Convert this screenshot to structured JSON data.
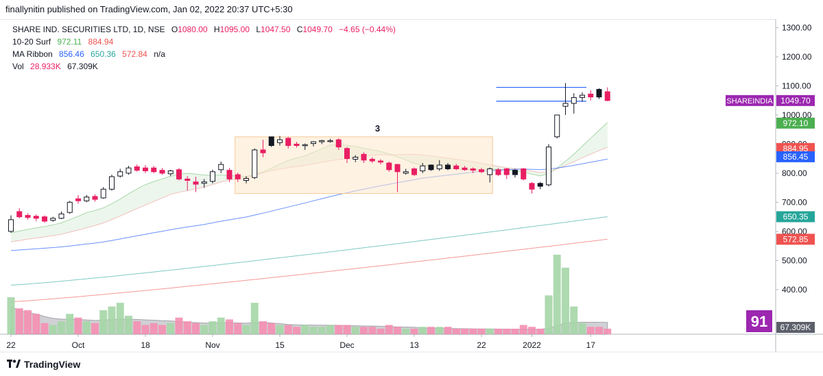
{
  "published_line": "finallynitin published on TradingView.com, Jan 02, 2022 20:37 UTC+5:30",
  "brand": {
    "logo_icon": "tradingview-logo-icon",
    "name": "TradingView"
  },
  "legend": {
    "symbol": "SHARE IND. SECURITIES LTD, 1D, NSE",
    "open_label": "O",
    "open": "1080.00",
    "high_label": "H",
    "high": "1095.00",
    "low_label": "L",
    "low": "1047.50",
    "close_label": "C",
    "close": "1049.70",
    "change": "−4.65 (−0.44%)",
    "surf_name": "10-20 Surf",
    "surf_v1": "972.11",
    "surf_v2": "884.94",
    "ribbon_name": "MA Ribbon",
    "ribbon_v1": "856.46",
    "ribbon_v2": "650.36",
    "ribbon_v3": "572.84",
    "ribbon_v4": "n/a",
    "vol_name": "Vol",
    "vol_v1": "28.933K",
    "vol_v2": "67.309K"
  },
  "colors": {
    "up": "#ffffff",
    "up_border": "#131722",
    "down": "#e91e63",
    "black_candle": "#131722",
    "surf_fast": "#4caf50",
    "surf_slow": "#ef5350",
    "ma_blue": "#2962ff",
    "ma_teal": "#26a69a",
    "ma_red": "#ef5350",
    "box_fill": "#fde7cc",
    "box_border": "#f5c997",
    "vol_up": "#a5d6a7",
    "vol_down": "#f48fb1",
    "vol_ma": "#9e9e9e",
    "hline": "#2962ff"
  },
  "chart_data": {
    "type": "candlestick",
    "symbol": "SHAREINDIA",
    "ylim": [
      350,
      1320
    ],
    "y_ticks": [
      "1300.00",
      "1200.00",
      "1100.00",
      "1000.00",
      "900.00",
      "800.00",
      "700.00",
      "600.00",
      "500.00",
      "400.00"
    ],
    "x_ticks": [
      "22",
      "Oct",
      "18",
      "Nov",
      "15",
      "Dec",
      "13",
      "22",
      "2022",
      "17"
    ],
    "x_tick_bars": [
      0,
      8,
      16,
      24,
      32,
      40,
      48,
      56,
      62,
      69
    ],
    "box_annotation": {
      "label": "3",
      "x_from_bar": 27,
      "x_to_bar": 57,
      "y_from": 730,
      "y_to": 925
    },
    "range_lines": [
      {
        "y": 1095,
        "x_from_bar": 58,
        "x_to_bar": 64
      },
      {
        "y": 1047.5,
        "x_from_bar": 58,
        "x_to_bar": 64
      }
    ],
    "candles": [
      {
        "o": 600,
        "h": 655,
        "l": 595,
        "c": 640,
        "vol": 40,
        "color": "up"
      },
      {
        "o": 668,
        "h": 680,
        "l": 645,
        "c": 650,
        "vol": 28,
        "color": "down"
      },
      {
        "o": 655,
        "h": 662,
        "l": 640,
        "c": 648,
        "vol": 26,
        "color": "down"
      },
      {
        "o": 652,
        "h": 658,
        "l": 635,
        "c": 645,
        "vol": 22,
        "color": "down"
      },
      {
        "o": 650,
        "h": 655,
        "l": 630,
        "c": 635,
        "vol": 12,
        "color": "down"
      },
      {
        "o": 638,
        "h": 650,
        "l": 633,
        "c": 645,
        "vol": 10,
        "color": "up"
      },
      {
        "o": 645,
        "h": 668,
        "l": 642,
        "c": 660,
        "vol": 14,
        "color": "up"
      },
      {
        "o": 665,
        "h": 705,
        "l": 660,
        "c": 700,
        "vol": 22,
        "color": "up"
      },
      {
        "o": 712,
        "h": 725,
        "l": 695,
        "c": 705,
        "vol": 18,
        "color": "down"
      },
      {
        "o": 705,
        "h": 725,
        "l": 700,
        "c": 718,
        "vol": 14,
        "color": "up"
      },
      {
        "o": 720,
        "h": 727,
        "l": 702,
        "c": 710,
        "vol": 12,
        "color": "down"
      },
      {
        "o": 715,
        "h": 752,
        "l": 712,
        "c": 745,
        "vol": 26,
        "color": "up"
      },
      {
        "o": 745,
        "h": 795,
        "l": 740,
        "c": 788,
        "vol": 30,
        "color": "up"
      },
      {
        "o": 790,
        "h": 815,
        "l": 785,
        "c": 805,
        "vol": 34,
        "color": "up"
      },
      {
        "o": 800,
        "h": 825,
        "l": 795,
        "c": 818,
        "vol": 20,
        "color": "up"
      },
      {
        "o": 822,
        "h": 830,
        "l": 805,
        "c": 810,
        "vol": 14,
        "color": "down"
      },
      {
        "o": 818,
        "h": 828,
        "l": 800,
        "c": 808,
        "vol": 10,
        "color": "down"
      },
      {
        "o": 818,
        "h": 825,
        "l": 800,
        "c": 805,
        "vol": 12,
        "color": "down"
      },
      {
        "o": 810,
        "h": 818,
        "l": 795,
        "c": 800,
        "vol": 10,
        "color": "down"
      },
      {
        "o": 798,
        "h": 812,
        "l": 790,
        "c": 808,
        "vol": 12,
        "color": "up"
      },
      {
        "o": 812,
        "h": 818,
        "l": 775,
        "c": 780,
        "vol": 18,
        "color": "down"
      },
      {
        "o": 780,
        "h": 790,
        "l": 740,
        "c": 775,
        "vol": 14,
        "color": "down"
      },
      {
        "o": 770,
        "h": 788,
        "l": 735,
        "c": 762,
        "vol": 12,
        "color": "down"
      },
      {
        "o": 765,
        "h": 780,
        "l": 750,
        "c": 770,
        "vol": 10,
        "color": "up"
      },
      {
        "o": 772,
        "h": 812,
        "l": 765,
        "c": 805,
        "vol": 14,
        "color": "up"
      },
      {
        "o": 812,
        "h": 840,
        "l": 800,
        "c": 830,
        "vol": 18,
        "color": "up"
      },
      {
        "o": 810,
        "h": 818,
        "l": 770,
        "c": 780,
        "vol": 16,
        "color": "down"
      },
      {
        "o": 780,
        "h": 802,
        "l": 770,
        "c": 795,
        "vol": 12,
        "color": "down"
      },
      {
        "o": 775,
        "h": 790,
        "l": 765,
        "c": 782,
        "vol": 10,
        "color": "up"
      },
      {
        "o": 785,
        "h": 885,
        "l": 780,
        "c": 880,
        "vol": 34,
        "color": "up"
      },
      {
        "o": 880,
        "h": 915,
        "l": 855,
        "c": 870,
        "vol": 14,
        "color": "down"
      },
      {
        "o": 925,
        "h": 925,
        "l": 890,
        "c": 895,
        "vol": 12,
        "color": "black"
      },
      {
        "o": 915,
        "h": 928,
        "l": 895,
        "c": 905,
        "vol": 10,
        "color": "up"
      },
      {
        "o": 920,
        "h": 925,
        "l": 885,
        "c": 895,
        "vol": 10,
        "color": "down"
      },
      {
        "o": 900,
        "h": 908,
        "l": 888,
        "c": 895,
        "vol": 8,
        "color": "down"
      },
      {
        "o": 895,
        "h": 902,
        "l": 880,
        "c": 898,
        "vol": 10,
        "color": "up"
      },
      {
        "o": 902,
        "h": 910,
        "l": 892,
        "c": 908,
        "vol": 8,
        "color": "up"
      },
      {
        "o": 908,
        "h": 915,
        "l": 900,
        "c": 912,
        "vol": 8,
        "color": "up"
      },
      {
        "o": 912,
        "h": 918,
        "l": 905,
        "c": 910,
        "vol": 10,
        "color": "up"
      },
      {
        "o": 915,
        "h": 920,
        "l": 880,
        "c": 890,
        "vol": 10,
        "color": "down"
      },
      {
        "o": 885,
        "h": 890,
        "l": 835,
        "c": 850,
        "vol": 10,
        "color": "down"
      },
      {
        "o": 848,
        "h": 862,
        "l": 838,
        "c": 855,
        "vol": 8,
        "color": "up"
      },
      {
        "o": 865,
        "h": 872,
        "l": 835,
        "c": 845,
        "vol": 8,
        "color": "down"
      },
      {
        "o": 848,
        "h": 855,
        "l": 835,
        "c": 842,
        "vol": 8,
        "color": "down"
      },
      {
        "o": 842,
        "h": 848,
        "l": 830,
        "c": 838,
        "vol": 6,
        "color": "down"
      },
      {
        "o": 835,
        "h": 840,
        "l": 805,
        "c": 812,
        "vol": 10,
        "color": "down"
      },
      {
        "o": 830,
        "h": 832,
        "l": 735,
        "c": 805,
        "vol": 8,
        "color": "down"
      },
      {
        "o": 800,
        "h": 815,
        "l": 795,
        "c": 805,
        "vol": 6,
        "color": "up"
      },
      {
        "o": 815,
        "h": 820,
        "l": 790,
        "c": 795,
        "vol": 6,
        "color": "down"
      },
      {
        "o": 808,
        "h": 835,
        "l": 800,
        "c": 825,
        "vol": 8,
        "color": "up"
      },
      {
        "o": 828,
        "h": 830,
        "l": 808,
        "c": 812,
        "vol": 8,
        "color": "black"
      },
      {
        "o": 815,
        "h": 845,
        "l": 808,
        "c": 828,
        "vol": 8,
        "color": "up"
      },
      {
        "o": 828,
        "h": 835,
        "l": 810,
        "c": 815,
        "vol": 8,
        "color": "black"
      },
      {
        "o": 825,
        "h": 832,
        "l": 810,
        "c": 815,
        "vol": 6,
        "color": "down"
      },
      {
        "o": 818,
        "h": 825,
        "l": 808,
        "c": 812,
        "vol": 6,
        "color": "down"
      },
      {
        "o": 815,
        "h": 820,
        "l": 800,
        "c": 810,
        "vol": 6,
        "color": "down"
      },
      {
        "o": 812,
        "h": 818,
        "l": 800,
        "c": 805,
        "vol": 6,
        "color": "down"
      },
      {
        "o": 795,
        "h": 820,
        "l": 768,
        "c": 815,
        "vol": 6,
        "color": "up"
      },
      {
        "o": 812,
        "h": 818,
        "l": 790,
        "c": 795,
        "vol": 6,
        "color": "down"
      },
      {
        "o": 815,
        "h": 818,
        "l": 780,
        "c": 795,
        "vol": 6,
        "color": "down"
      },
      {
        "o": 810,
        "h": 815,
        "l": 785,
        "c": 795,
        "vol": 6,
        "color": "black"
      },
      {
        "o": 815,
        "h": 818,
        "l": 775,
        "c": 780,
        "vol": 10,
        "color": "down"
      },
      {
        "o": 765,
        "h": 770,
        "l": 730,
        "c": 745,
        "vol": 8,
        "color": "down"
      },
      {
        "o": 765,
        "h": 770,
        "l": 745,
        "c": 755,
        "vol": 6,
        "color": "black"
      },
      {
        "o": 760,
        "h": 900,
        "l": 755,
        "c": 890,
        "vol": 42,
        "color": "up"
      },
      {
        "o": 925,
        "h": 1000,
        "l": 920,
        "c": 1000,
        "vol": 86,
        "color": "up"
      },
      {
        "o": 1030,
        "h": 1110,
        "l": 1000,
        "c": 1040,
        "vol": 72,
        "color": "up"
      },
      {
        "o": 1040,
        "h": 1075,
        "l": 1005,
        "c": 1060,
        "vol": 30,
        "color": "up"
      },
      {
        "o": 1060,
        "h": 1078,
        "l": 1045,
        "c": 1068,
        "vol": 12,
        "color": "up"
      },
      {
        "o": 1062,
        "h": 1085,
        "l": 1050,
        "c": 1072,
        "vol": 8,
        "color": "down"
      },
      {
        "o": 1088,
        "h": 1092,
        "l": 1055,
        "c": 1062,
        "vol": 8,
        "color": "black"
      },
      {
        "o": 1080,
        "h": 1095,
        "l": 1047.5,
        "c": 1049.7,
        "vol": 6,
        "color": "down"
      }
    ],
    "price_labels": [
      {
        "text": "SHAREINDIA",
        "value": "1049.70",
        "y": 1049.7,
        "color": "#9c27b0"
      },
      {
        "value": "972.10",
        "y": 972.1,
        "color": "#4caf50"
      },
      {
        "value": "884.95",
        "y": 884.95,
        "color": "#ef5350"
      },
      {
        "value": "856.45",
        "y": 856.45,
        "color": "#2962ff"
      },
      {
        "value": "650.35",
        "y": 650.35,
        "color": "#26a69a"
      },
      {
        "value": "572.85",
        "y": 572.85,
        "color": "#ef5350"
      },
      {
        "value": "67.309K",
        "y": 400,
        "color": "#5d606b",
        "volume": true
      }
    ],
    "badge": "91"
  }
}
